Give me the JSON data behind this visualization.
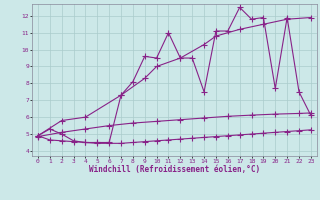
{
  "background_color": "#cce8e8",
  "grid_color": "#aacccc",
  "line_color": "#882288",
  "xlabel": "Windchill (Refroidissement éolien,°C)",
  "xlim": [
    -0.5,
    23.5
  ],
  "ylim": [
    3.7,
    12.7
  ],
  "yticks": [
    4,
    5,
    6,
    7,
    8,
    9,
    10,
    11,
    12
  ],
  "xticks": [
    0,
    1,
    2,
    3,
    4,
    5,
    6,
    7,
    8,
    9,
    10,
    11,
    12,
    13,
    14,
    15,
    16,
    17,
    18,
    19,
    20,
    21,
    22,
    23
  ],
  "line1_x": [
    0,
    1,
    2,
    3,
    4,
    5,
    6,
    7,
    8,
    9,
    10,
    11,
    12,
    13,
    14,
    15,
    16,
    17,
    18,
    19,
    20,
    21,
    22,
    23
  ],
  "line1_y": [
    4.9,
    5.3,
    5.0,
    4.6,
    4.5,
    4.5,
    4.5,
    7.3,
    8.1,
    9.6,
    9.5,
    11.0,
    9.5,
    9.5,
    7.5,
    11.1,
    11.1,
    12.5,
    11.8,
    11.9,
    7.7,
    11.9,
    7.5,
    6.1
  ],
  "line2_x": [
    0,
    2,
    4,
    7,
    9,
    10,
    12,
    14,
    15,
    17,
    19,
    21,
    23
  ],
  "line2_y": [
    4.9,
    5.8,
    6.0,
    7.3,
    8.3,
    9.0,
    9.5,
    10.3,
    10.8,
    11.2,
    11.5,
    11.8,
    11.9
  ],
  "line3_x": [
    0,
    2,
    4,
    6,
    8,
    10,
    12,
    14,
    16,
    18,
    20,
    22,
    23
  ],
  "line3_y": [
    4.85,
    5.1,
    5.3,
    5.5,
    5.65,
    5.75,
    5.85,
    5.95,
    6.05,
    6.12,
    6.18,
    6.22,
    6.25
  ],
  "line4_x": [
    0,
    1,
    2,
    3,
    4,
    5,
    6,
    7,
    8,
    9,
    10,
    11,
    12,
    13,
    14,
    15,
    16,
    17,
    18,
    19,
    20,
    21,
    22,
    23
  ],
  "line4_y": [
    4.9,
    4.65,
    4.6,
    4.55,
    4.5,
    4.45,
    4.45,
    4.45,
    4.5,
    4.55,
    4.6,
    4.65,
    4.7,
    4.75,
    4.8,
    4.85,
    4.9,
    4.95,
    5.0,
    5.05,
    5.1,
    5.15,
    5.2,
    5.25
  ]
}
